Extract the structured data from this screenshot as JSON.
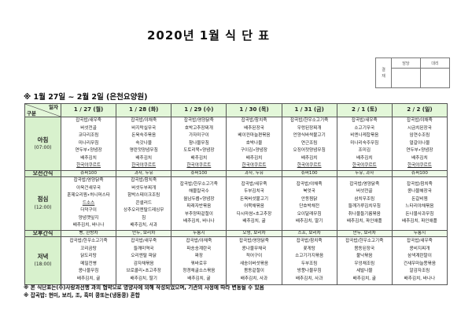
{
  "title": "2020년 1월 식 단 표",
  "approval": {
    "label_lines": [
      "결",
      "재"
    ],
    "columns": [
      "담당",
      "대리"
    ]
  },
  "subtitle": "※ 1월 27일 ~ 2월 2일 (은천요양원)",
  "corner": {
    "top": "일자",
    "bottom": "구분"
  },
  "colors": {
    "header_bg": "#e3f7d9",
    "label_bg": "#d8f1cd",
    "saturday": "#1a1acc",
    "sunday": "#e02020"
  },
  "days": [
    {
      "label": "1 / 27 (월)",
      "type": "weekday"
    },
    {
      "label": "1 / 28 (화)",
      "type": "weekday"
    },
    {
      "label": "1 / 29 (수)",
      "type": "weekday"
    },
    {
      "label": "1 / 30 (목)",
      "type": "weekday"
    },
    {
      "label": "1 / 31 (금)",
      "type": "weekday"
    },
    {
      "label": "2 / 1 (토)",
      "type": "saturday"
    },
    {
      "label": "2 / 2 (일)",
      "type": "sunday"
    }
  ],
  "meals": [
    {
      "name": "아침",
      "time": "(07:00)",
      "kind": "meal",
      "menu": [
        [
          "잡곡밥/새우죽",
          "버섯전골",
          "코다리조림",
          "미나리무침",
          "연두부•양념장",
          "배추김치",
          "한국야쿠르트"
        ],
        [
          "잡곡밥/야채죽",
          "바지락실무국",
          "돈육숙주볶음",
          "숙갓나물",
          "명란젓양념무침",
          "배추김치",
          "한국야쿠르트"
        ],
        [
          "잡곡밥/영양닭죽",
          "호박고추장찌개",
          "가자미구이",
          "참나물무침",
          "도토리묵•양념장",
          "배추김치",
          "한국야쿠르트"
        ],
        [
          "잡곡밥/참치죽",
          "배추된장국",
          "베이컨마늘편볶음",
          "호박나물",
          "구이김•양념장",
          "배추김치",
          "한국야쿠르트"
        ],
        [
          "잡곡밥/한우소고기죽",
          "우렁된장찌개",
          "언양식바싹불고기",
          "연근조림",
          "오징어젓양념무침",
          "배추김치",
          "한국야쿠르트"
        ],
        [
          "잡곡밥/새우죽",
          "소고기무국",
          "비엔나케찹볶음",
          "미나리숙주무침",
          "조미김",
          "배추김치",
          "한국야쿠르트"
        ],
        [
          "잡곡밥/야채죽",
          "시금치된장국",
          "임연수조림",
          "얼갈이나물",
          "연두부•양념장",
          "배추김치",
          "한국야쿠르트"
        ]
      ]
    },
    {
      "name": "오전간식",
      "kind": "snack",
      "menu": [
        "슈퍼100",
        "과자, 두유",
        "슈퍼100",
        "과자, 두유",
        "슈퍼100",
        "두유, 과자",
        "슈퍼100"
      ]
    },
    {
      "name": "점심",
      "time": "(12:00)",
      "kind": "meal",
      "menu": [
        [
          "잡곡밥/영양닭죽",
          "아욱건새우국",
          "훈제오리찜•허니머스타",
          "드소스",
          "더덕구이",
          "양념깻잎지",
          "배추김치, 바나나"
        ],
        [
          "잡곡밥/참치죽",
          "버섯두부찌개",
          "함박스테이크조림",
          "콘샐러드",
          "상추오리엔탈드레싱무",
          "침",
          "배추김치, 사과"
        ],
        [
          "잡곡밥/한우소고기죽",
          "해물칼국수",
          "월남두릅•양념장",
          "파래자반볶음",
          "부추양파겉절이",
          "배추김치, 바나나"
        ],
        [
          "잡곡밥/새우죽",
          "두부김치국",
          "돈육버섯불고기",
          "어묵채볶음",
          "다시마쌈•초고추장",
          "배추김치, 귤"
        ],
        [
          "잡곡밥/야채죽",
          "북엇국",
          "안동찜닭",
          "단호박채전",
          "오이달래무침",
          "배추김치, 딸기"
        ],
        [
          "잡곡밥/영양닭죽",
          "버섯전골",
          "삼치무조림",
          "들깨가루김치무침",
          "취나물들기름볶음",
          "배추김치, 파인애플"
        ],
        [
          "잡곡밥/참치죽",
          "콩나물해장국",
          "돈갈비찜",
          "느타리야채볶음",
          "돈나물사과무침",
          "배추김치, 파인애플"
        ]
      ]
    },
    {
      "name": "오후간식",
      "kind": "snack",
      "menu": [
        "빵, 한방차",
        "만두, 보리차",
        "누룽지",
        "오뎅, 보리차",
        "스프, 보리차",
        "만두, 보리차",
        "누룽지"
      ]
    },
    {
      "name": "저녁",
      "time": "(18:00)",
      "kind": "meal",
      "menu": [
        [
          "잡곡밥/한우소고기죽",
          "꼬리곰탕",
          "닭도리탕",
          "메밀전병",
          "콩나물무침",
          "배추김치, 귤"
        ],
        [
          "잡곡밥/새우죽",
          "들깨미역국",
          "오리엔탈 파닭",
          "감자채볶음",
          "브로콜리•초고추장",
          "배추김치, 딸기"
        ],
        [
          "잡곡밥/야채죽",
          "파송송계란국",
          "짜장",
          "꿔바로우",
          "청경채굴소스볶음",
          "배추김치, 귤"
        ],
        [
          "잡곡밥/영양닭죽",
          "콩나물무채국",
          "적어구이",
          "새송이버섯볶음",
          "봄동겉절이",
          "배추김치, 사과"
        ],
        [
          "잡곡밥/참치죽",
          "꽃게탕",
          "소고기가지볶음",
          "두부조림",
          "방풍나물무침",
          "배추김치, 사과"
        ],
        [
          "잡곡밥/한우소고기죽",
          "봄동된장국",
          "불낙볶음",
          "우엉채조림",
          "세발나물",
          "배추김치, 귤"
        ],
        [
          "잡곡밥/새우죽",
          "콩비지찌개",
          "삼색계란말이",
          "건새우마늘쫑볶음",
          "알감자조림",
          "배추김치, 바나나"
        ]
      ]
    }
  ],
  "notes": [
    "※ 본 식단표는(주)사랑과선행 과의 협약으로 영양사에 의해 작성되었으며, 기관의 사정에 따라 변동될 수 있음",
    "※ 잡곡밥: 현미, 보리, 조, 흑미 콩또는(냉동콩) 혼합"
  ]
}
